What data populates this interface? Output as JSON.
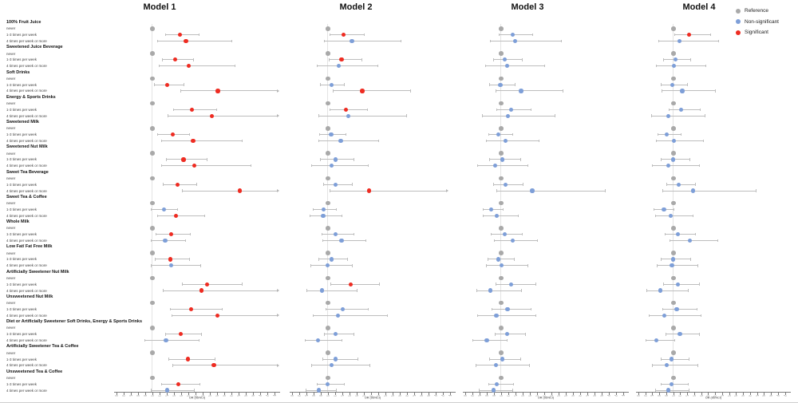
{
  "legend": {
    "items": [
      {
        "label": "Reference",
        "color": "#a9a9a9"
      },
      {
        "label": "Non-significant",
        "color": "#7e9fd8"
      },
      {
        "label": "Significant",
        "color": "#ee2c22"
      }
    ]
  },
  "axis": {
    "label": "OR (95%CI)"
  },
  "chart_data": {
    "type": "forest",
    "note": "Forest plot of odds ratios (dot, 95% CI low, 95% CI high) per beverage frequency row, one column per model. Entry format: [or, lo, hi, significant(1=red/0=blue), arrow_at_high(1/0)]. 'never' rows are gray reference points at OR=1.",
    "panels": [
      {
        "name": "Model 1",
        "or_min": 0,
        "or_max": 4.5,
        "tick_step": 0.2
      },
      {
        "name": "Model 2",
        "or_min": 0,
        "or_max": 4.5,
        "tick_step": 0.2
      },
      {
        "name": "Model 3",
        "or_min": 0,
        "or_max": 4.5,
        "tick_step": 0.2
      },
      {
        "name": "Model 4",
        "or_min": 0,
        "or_max": 4.3,
        "tick_step": 0.2
      }
    ],
    "row_labels": [
      "never",
      "1-3 times per week",
      "4 times per week or more"
    ],
    "categories": [
      {
        "name": "100% Fruit Juice",
        "rows": [
          [
            [
              1.77,
              1.35,
              2.31,
              1,
              0
            ],
            [
              1.44,
              1.04,
              2.02,
              1,
              0
            ],
            [
              1.32,
              0.93,
              1.9,
              0,
              0
            ],
            [
              1.45,
              1.04,
              2.07,
              1,
              0
            ]
          ],
          [
            [
              1.94,
              1.13,
              3.24,
              1,
              0
            ],
            [
              1.67,
              0.9,
              3.05,
              0,
              0
            ],
            [
              1.39,
              0.7,
              2.69,
              0,
              0
            ],
            [
              1.18,
              0.58,
              2.32,
              0,
              0
            ]
          ]
        ]
      },
      {
        "name": "Sweetened Juice Beverage",
        "rows": [
          [
            [
              1.64,
              1.26,
              2.16,
              1,
              0
            ],
            [
              1.38,
              1.02,
              1.96,
              1,
              0
            ],
            [
              1.1,
              0.77,
              1.6,
              0,
              0
            ],
            [
              1.06,
              0.71,
              1.52,
              0,
              0
            ]
          ],
          [
            [
              2.02,
              1.18,
              3.33,
              1,
              0
            ],
            [
              1.3,
              0.68,
              2.4,
              0,
              0
            ],
            [
              1.17,
              0.56,
              2.23,
              0,
              0
            ],
            [
              1.01,
              0.5,
              1.95,
              0,
              0
            ]
          ]
        ]
      },
      {
        "name": "Soft Drinks",
        "rows": [
          [
            [
              1.42,
              1.05,
              1.9,
              1,
              0
            ],
            [
              1.1,
              0.78,
              1.48,
              0,
              0
            ],
            [
              0.98,
              0.67,
              1.4,
              0,
              0
            ],
            [
              0.97,
              0.64,
              1.42,
              0,
              0
            ]
          ],
          [
            [
              2.83,
              1.78,
              4.5,
              1,
              1
            ],
            [
              1.96,
              1.14,
              3.31,
              1,
              0
            ],
            [
              1.56,
              0.84,
              2.75,
              0,
              0
            ],
            [
              1.26,
              0.67,
              2.22,
              0,
              0
            ]
          ]
        ]
      },
      {
        "name": "Energy & Sports Drinks",
        "rows": [
          [
            [
              2.11,
              1.59,
              2.81,
              1,
              0
            ],
            [
              1.51,
              1.05,
              2.11,
              1,
              0
            ],
            [
              1.28,
              0.87,
              1.86,
              0,
              0
            ],
            [
              1.22,
              0.86,
              1.78,
              0,
              0
            ]
          ],
          [
            [
              2.67,
              1.42,
              4.5,
              1,
              1
            ],
            [
              1.57,
              0.73,
              3.2,
              0,
              0
            ],
            [
              1.19,
              0.47,
              2.51,
              0,
              0
            ],
            [
              0.86,
              0.36,
              1.93,
              0,
              0
            ]
          ]
        ]
      },
      {
        "name": "Sweetened Milk",
        "rows": [
          [
            [
              1.57,
              1.14,
              2.05,
              1,
              0
            ],
            [
              1.09,
              0.76,
              1.52,
              0,
              0
            ],
            [
              0.92,
              0.65,
              1.34,
              0,
              0
            ],
            [
              0.82,
              0.54,
              1.23,
              0,
              0
            ]
          ],
          [
            [
              2.14,
              1.25,
              3.51,
              1,
              0
            ],
            [
              1.36,
              0.74,
              2.42,
              0,
              0
            ],
            [
              1.13,
              0.58,
              2.07,
              0,
              0
            ],
            [
              1.02,
              0.5,
              1.87,
              0,
              0
            ]
          ]
        ]
      },
      {
        "name": "Sweetened Nut Milk",
        "rows": [
          [
            [
              1.87,
              1.38,
              2.53,
              1,
              0
            ],
            [
              1.22,
              0.78,
              1.74,
              0,
              0
            ],
            [
              1.04,
              0.67,
              1.55,
              0,
              0
            ],
            [
              1.0,
              0.64,
              1.49,
              0,
              0
            ]
          ],
          [
            [
              2.18,
              1.24,
              3.76,
              1,
              0
            ],
            [
              1.11,
              0.53,
              2.14,
              0,
              0
            ],
            [
              0.84,
              0.33,
              1.77,
              0,
              0
            ],
            [
              0.86,
              0.38,
              1.75,
              0,
              0
            ]
          ]
        ]
      },
      {
        "name": "Sweet Tea Beverage",
        "rows": [
          [
            [
              1.7,
              1.29,
              2.24,
              1,
              0
            ],
            [
              1.22,
              0.87,
              1.7,
              0,
              0
            ],
            [
              1.13,
              0.77,
              1.62,
              0,
              0
            ],
            [
              1.15,
              0.8,
              1.64,
              0,
              0
            ]
          ],
          [
            [
              3.44,
              1.83,
              4.5,
              1,
              1
            ],
            [
              2.15,
              1.04,
              4.33,
              1,
              1
            ],
            [
              1.87,
              0.86,
              3.92,
              0,
              0
            ],
            [
              1.56,
              0.69,
              3.39,
              0,
              0
            ]
          ]
        ]
      },
      {
        "name": "Sweet Tea & Coffee",
        "rows": [
          [
            [
              1.32,
              0.96,
              1.72,
              0,
              0
            ],
            [
              0.88,
              0.58,
              1.24,
              0,
              0
            ],
            [
              0.73,
              0.49,
              1.08,
              0,
              0
            ],
            [
              0.73,
              0.44,
              1.02,
              0,
              0
            ]
          ],
          [
            [
              1.66,
              1.14,
              2.47,
              1,
              0
            ],
            [
              0.87,
              0.49,
              1.41,
              0,
              0
            ],
            [
              0.88,
              0.49,
              1.5,
              0,
              0
            ],
            [
              0.93,
              0.49,
              1.58,
              0,
              0
            ]
          ]
        ]
      },
      {
        "name": "Whole Milk",
        "rows": [
          [
            [
              1.53,
              1.09,
              2.07,
              1,
              0
            ],
            [
              1.22,
              0.83,
              1.74,
              0,
              0
            ],
            [
              1.1,
              0.72,
              1.6,
              0,
              0
            ],
            [
              1.13,
              0.75,
              1.64,
              0,
              0
            ]
          ],
          [
            [
              1.36,
              0.96,
              1.93,
              0,
              0
            ],
            [
              1.38,
              0.84,
              2.07,
              0,
              0
            ],
            [
              1.32,
              0.8,
              2.03,
              0,
              0
            ],
            [
              1.48,
              0.9,
              2.28,
              0,
              0
            ]
          ]
        ]
      },
      {
        "name": "Low Fat/ Fat Free Milk",
        "rows": [
          [
            [
              1.5,
              1.07,
              2.04,
              1,
              0
            ],
            [
              1.1,
              0.73,
              1.57,
              0,
              0
            ],
            [
              0.92,
              0.63,
              1.39,
              0,
              0
            ],
            [
              0.99,
              0.65,
              1.5,
              0,
              0
            ]
          ],
          [
            [
              1.53,
              0.96,
              2.37,
              0,
              0
            ],
            [
              1.0,
              0.51,
              1.7,
              0,
              0
            ],
            [
              1.01,
              0.58,
              1.75,
              0,
              0
            ],
            [
              0.96,
              0.53,
              1.71,
              0,
              0
            ]
          ]
        ]
      },
      {
        "name": "Artificially Sweetener Nut Milk",
        "rows": [
          [
            [
              2.52,
              1.82,
              3.51,
              1,
              0
            ],
            [
              1.64,
              1.07,
              2.44,
              1,
              0
            ],
            [
              1.29,
              0.84,
              1.99,
              0,
              0
            ],
            [
              1.13,
              0.71,
              1.76,
              0,
              0
            ]
          ],
          [
            [
              2.37,
              1.29,
              4.5,
              1,
              1
            ],
            [
              0.84,
              0.4,
              1.83,
              0,
              0
            ],
            [
              0.71,
              0.31,
              1.58,
              0,
              0
            ],
            [
              0.62,
              0.23,
              1.45,
              0,
              0
            ]
          ]
        ]
      },
      {
        "name": "Unsweetened Nut Milk",
        "rows": [
          [
            [
              2.09,
              1.5,
              2.96,
              1,
              0
            ],
            [
              1.42,
              0.94,
              2.13,
              0,
              0
            ],
            [
              1.18,
              0.73,
              1.84,
              0,
              0
            ],
            [
              1.1,
              0.69,
              1.69,
              0,
              0
            ]
          ],
          [
            [
              2.81,
              1.53,
              4.5,
              1,
              1
            ],
            [
              1.29,
              0.57,
              2.67,
              0,
              0
            ],
            [
              0.87,
              0.33,
              1.99,
              0,
              0
            ],
            [
              0.75,
              0.3,
              1.8,
              0,
              0
            ]
          ]
        ]
      },
      {
        "name": "Diet or Artificially Sweetener Soft Drinks, Energy & Sports Drinks",
        "rows": [
          [
            [
              1.79,
              1.37,
              2.38,
              1,
              0
            ],
            [
              1.22,
              0.89,
              1.74,
              0,
              0
            ],
            [
              1.17,
              0.82,
              1.7,
              0,
              0
            ],
            [
              1.19,
              0.78,
              1.75,
              0,
              0
            ]
          ],
          [
            [
              1.38,
              0.79,
              2.31,
              0,
              0
            ],
            [
              0.72,
              0.35,
              1.41,
              0,
              0
            ],
            [
              0.6,
              0.2,
              1.17,
              0,
              0
            ],
            [
              0.52,
              0.21,
              1.06,
              0,
              0
            ]
          ]
        ]
      },
      {
        "name": "Artificially Sweetener Tea & Coffee",
        "rows": [
          [
            [
              1.99,
              1.44,
              2.76,
              1,
              0
            ],
            [
              1.22,
              0.84,
              1.84,
              0,
              0
            ],
            [
              1.03,
              0.67,
              1.55,
              0,
              0
            ],
            [
              0.95,
              0.63,
              1.47,
              0,
              0
            ]
          ],
          [
            [
              2.72,
              1.56,
              4.5,
              1,
              1
            ],
            [
              1.11,
              0.53,
              2.18,
              0,
              0
            ],
            [
              0.86,
              0.29,
              1.8,
              0,
              0
            ],
            [
              0.81,
              0.38,
              1.71,
              0,
              0
            ]
          ]
        ]
      },
      {
        "name": "Unsweetened Tea & Coffee",
        "rows": [
          [
            [
              1.72,
              1.24,
              2.33,
              1,
              0
            ],
            [
              1.0,
              0.68,
              1.47,
              0,
              0
            ],
            [
              0.88,
              0.64,
              1.36,
              0,
              0
            ],
            [
              0.95,
              0.63,
              1.44,
              0,
              0
            ]
          ],
          [
            [
              1.42,
              0.96,
              2.18,
              0,
              0
            ],
            [
              0.74,
              0.38,
              1.25,
              0,
              0
            ],
            [
              0.79,
              0.38,
              1.33,
              0,
              0
            ],
            [
              0.86,
              0.48,
              1.47,
              0,
              0
            ]
          ]
        ]
      }
    ]
  }
}
